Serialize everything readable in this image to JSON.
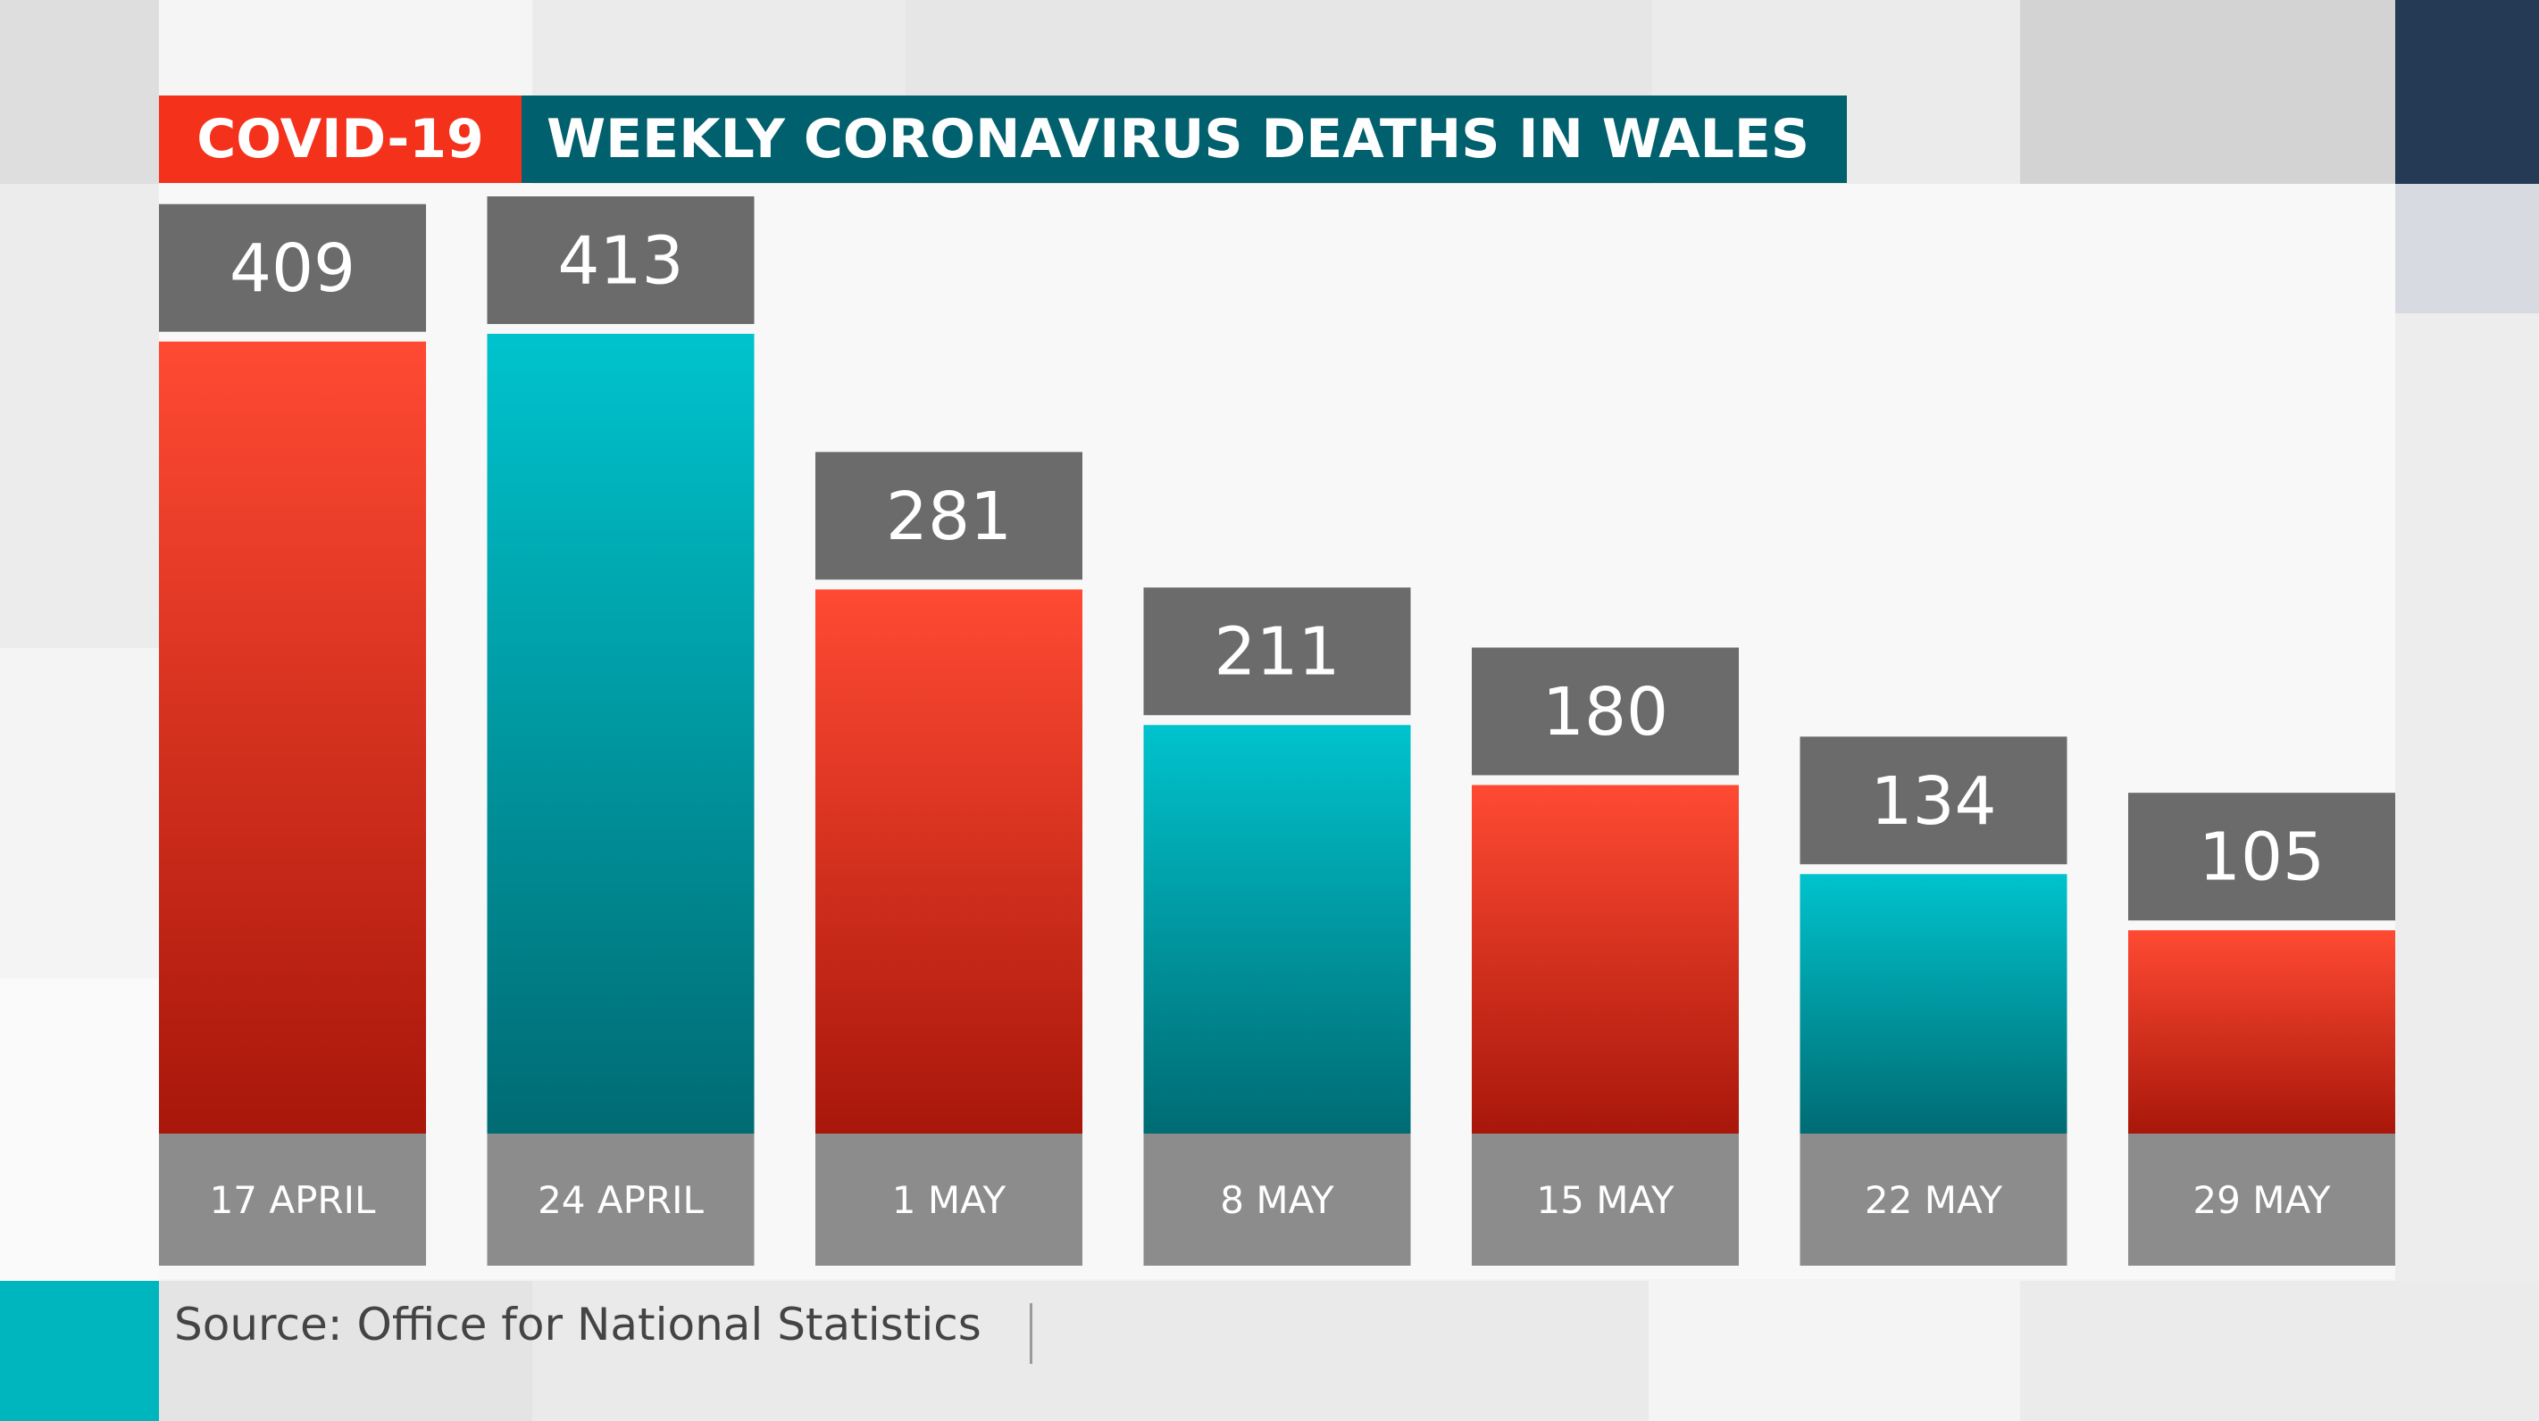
{
  "header": {
    "tag": "COVID-19",
    "title": "WEEKLY CORONAVIRUS DEATHS IN WALES"
  },
  "colors": {
    "tag_bg": "#f4321c",
    "title_bg": "#01606d",
    "red_bar_top": "#ff4a33",
    "red_bar_bottom": "#a8170a",
    "teal_bar_top": "#00c3cd",
    "teal_bar_bottom": "#006b73",
    "value_box": "#6b6b6b",
    "date_box": "#8c8c8c",
    "footer_accent": "#00b6be"
  },
  "footer": {
    "source": "Source: Office for National Statistics"
  },
  "chart_data": {
    "type": "bar",
    "title": "WEEKLY CORONAVIRUS DEATHS IN WALES",
    "xlabel": "",
    "ylabel": "",
    "ylim": [
      0,
      413
    ],
    "categories": [
      "17 APRIL",
      "24 APRIL",
      "1 MAY",
      "8 MAY",
      "15 MAY",
      "22 MAY",
      "29 MAY"
    ],
    "values": [
      409,
      413,
      281,
      211,
      180,
      134,
      105
    ],
    "bar_colors": [
      "red",
      "teal",
      "red",
      "teal",
      "red",
      "teal",
      "red"
    ],
    "data_labels": true,
    "grid": false
  }
}
